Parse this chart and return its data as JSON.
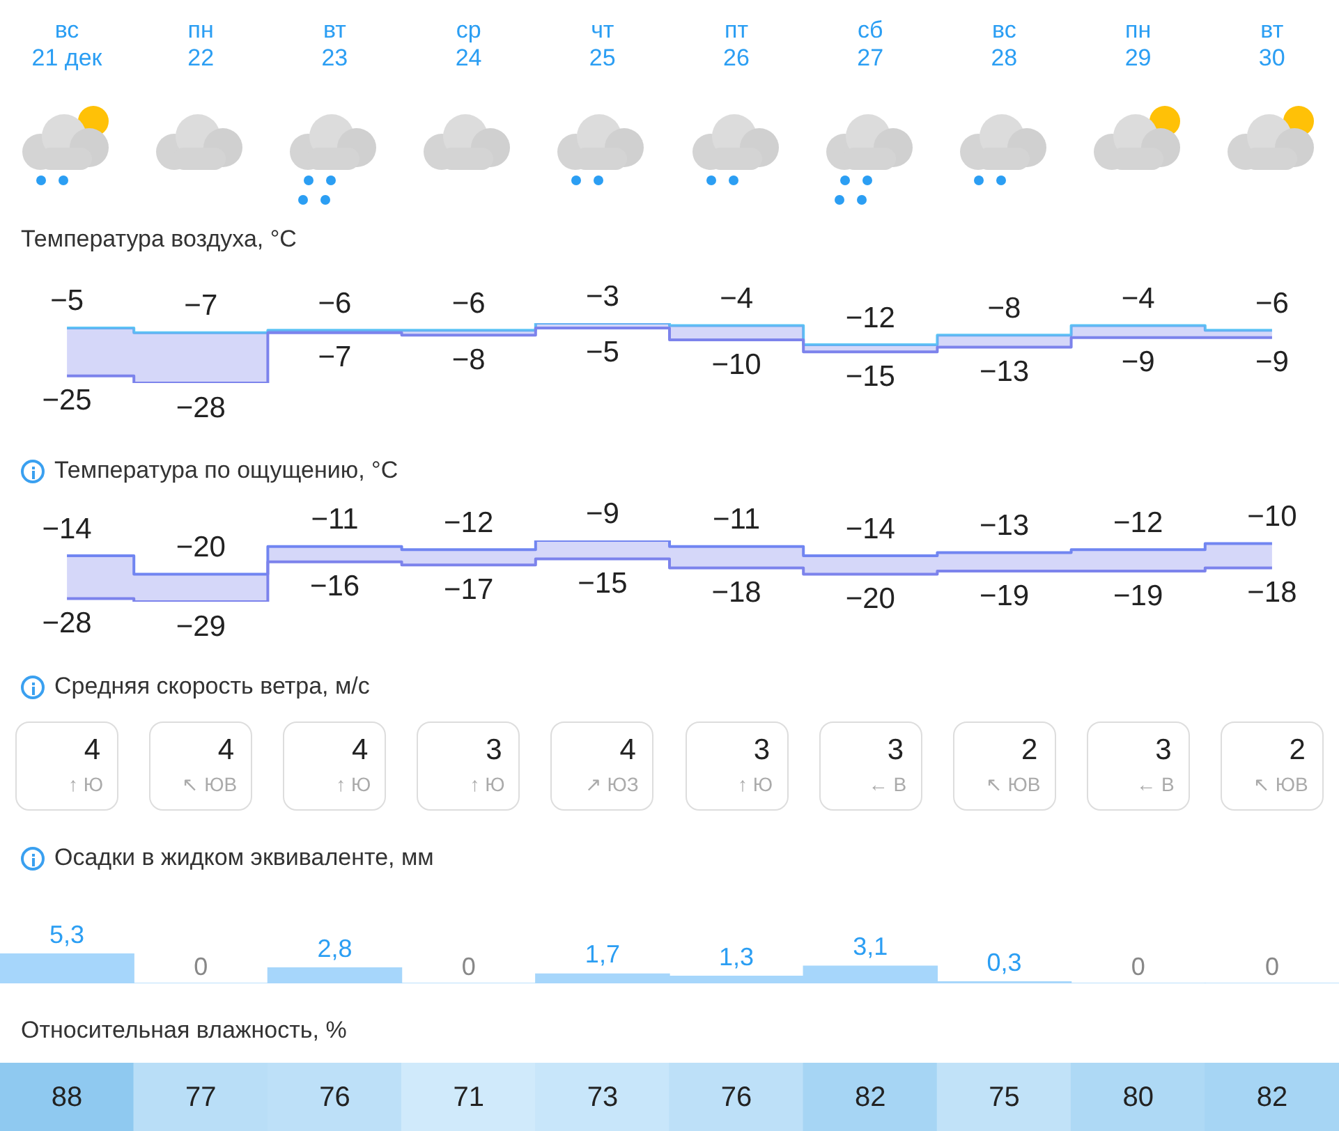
{
  "chart_data": [
    {
      "type": "step",
      "title": "Температура воздуха, °C",
      "categories": [
        "вс 21 дек",
        "пн 22",
        "вт 23",
        "ср 24",
        "чт 25",
        "пт 26",
        "сб 27",
        "вс 28",
        "пн 29",
        "вт 30"
      ],
      "series": [
        {
          "color": "#7c83ec",
          "values": [
            -25,
            -28,
            -7,
            -8,
            -5,
            -10,
            -15,
            -13,
            -9,
            -9
          ],
          "value_labels": [
            "−25",
            "−28",
            "−7",
            "−8",
            "−5",
            "−10",
            "−15",
            "−13",
            "−9",
            "−9"
          ],
          "lower": [
            -25,
            -28,
            -7,
            -8,
            -5,
            -10,
            -15,
            -13,
            -9,
            -9
          ],
          "upper": [
            -5,
            -7,
            -6,
            -6,
            -3,
            -4,
            -12,
            -8,
            -4,
            -6
          ]
        },
        {
          "color": "#5bc4f5",
          "values": [
            -5,
            -7,
            -6,
            -6,
            -3,
            -4,
            -12,
            -8,
            -4,
            -6
          ],
          "value_labels": [
            "−5",
            "−7",
            "−6",
            "−6",
            "−3",
            "−4",
            "−12",
            "−8",
            "−4",
            "−6"
          ]
        }
      ]
    },
    {
      "type": "step",
      "title": "Температура по ощущению, °C",
      "categories": [
        null,
        null,
        null,
        null,
        null,
        null,
        null,
        null,
        null,
        null
      ],
      "series": [
        {
          "color": "#7c83ec",
          "values": [
            -28,
            -29,
            -16,
            -17,
            -15,
            -18,
            -20,
            -19,
            -19,
            -18
          ],
          "value_labels": [
            "−28",
            "−29",
            "−16",
            "−17",
            "−15",
            "−18",
            "−20",
            "−19",
            "−19",
            "−18"
          ],
          "lower": [
            -28,
            -29,
            -16,
            -17,
            -15,
            -18,
            -20,
            -19,
            -19,
            -18
          ],
          "upper": [
            -14,
            -20,
            -11,
            -12,
            -9,
            -11,
            -14,
            -13,
            -12,
            -10
          ]
        },
        {
          "color": "#6f86f2",
          "values": [
            -14,
            -20,
            -11,
            -12,
            -9,
            -11,
            -14,
            -13,
            -12,
            -10
          ],
          "value_labels": [
            "−14",
            "−20",
            "−11",
            "−12",
            "−9",
            "−11",
            "−14",
            "−13",
            "−12",
            "−10"
          ]
        }
      ]
    },
    {
      "type": "other",
      "title": "Средняя скорость ветра, м/с",
      "categories": [
        "↑ Ю",
        "↖ ЮВ",
        "↑ Ю",
        "↑ Ю",
        "↗ ЮЗ",
        "↑ Ю",
        "← В",
        "↖ ЮВ",
        "← В",
        "↖ ЮВ"
      ],
      "values": [
        4,
        4,
        4,
        3,
        4,
        3,
        3,
        2,
        3,
        2
      ],
      "data_labels": true
    },
    {
      "type": "bar",
      "title": "Осадки в жидком эквиваленте, мм",
      "categories": [
        null,
        null,
        null,
        null,
        null,
        null,
        null,
        null,
        null,
        null
      ],
      "color": "#a6d6fb",
      "values": [
        5.3,
        0,
        2.8,
        0,
        1.7,
        1.3,
        3.1,
        0.3,
        0,
        0
      ],
      "value_labels": [
        "5,3",
        "0",
        "2,8",
        "0",
        "1,7",
        "1,3",
        "3,1",
        "0,3",
        "0",
        "0"
      ]
    },
    {
      "type": "heatmap",
      "title": "Относительная влажность, %",
      "categories": [
        null,
        null,
        null,
        null,
        null,
        null,
        null,
        null,
        null,
        null
      ],
      "y_categories": [
        null
      ],
      "cells": [
        [
          88,
          77,
          76,
          71,
          73,
          76,
          82,
          75,
          80,
          82
        ]
      ],
      "data_labels": true
    }
  ]
}
